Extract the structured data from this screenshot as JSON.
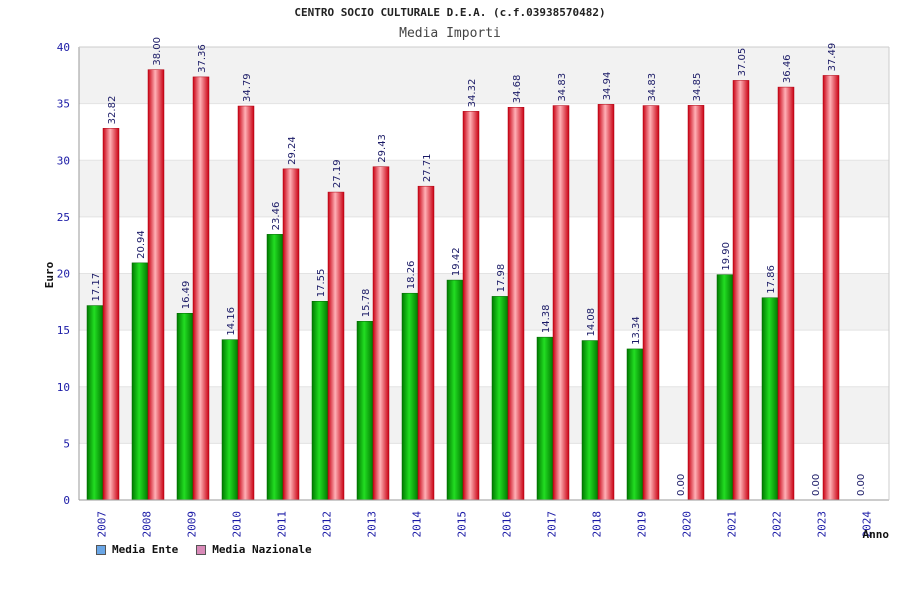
{
  "chart_data": {
    "type": "bar",
    "title": "CENTRO SOCIO CULTURALE D.E.A. (c.f.03938570482)",
    "subtitle": "Media Importi",
    "xlabel": "Anno",
    "ylabel": "Euro",
    "ylim": [
      0,
      40
    ],
    "yticks": [
      0,
      5,
      10,
      15,
      20,
      25,
      30,
      35,
      40
    ],
    "grid": true,
    "legend_position": "bottom-left",
    "categories": [
      "2007",
      "2008",
      "2009",
      "2010",
      "2011",
      "2012",
      "2013",
      "2014",
      "2015",
      "2016",
      "2017",
      "2018",
      "2019",
      "2020",
      "2021",
      "2022",
      "2023",
      "2024"
    ],
    "series": [
      {
        "name": "Media Ente",
        "color": "#00aa00",
        "legend_color": "#6aa6e6",
        "values": [
          17.17,
          20.94,
          16.49,
          14.16,
          23.46,
          17.55,
          15.78,
          18.26,
          19.42,
          17.98,
          14.38,
          14.08,
          13.34,
          0.0,
          19.9,
          17.86,
          0.0,
          0.0
        ],
        "labels": [
          "17.17",
          "20.94",
          "16.49",
          "14.16",
          "23.46",
          "17.55",
          "15.78",
          "18.26",
          "19.42",
          "17.98",
          "14.38",
          "14.08",
          "13.34",
          "0.00",
          "19.90",
          "17.86",
          "0.00",
          "0.00"
        ]
      },
      {
        "name": "Media Nazionale",
        "color": "#ee1c2a",
        "legend_color": "#d98ab8",
        "values": [
          32.82,
          38.0,
          37.36,
          34.79,
          29.24,
          27.19,
          29.43,
          27.71,
          34.32,
          34.68,
          34.83,
          34.94,
          34.83,
          34.85,
          37.05,
          36.46,
          37.49,
          null
        ],
        "labels": [
          "32.82",
          "38.00",
          "37.36",
          "34.79",
          "29.24",
          "27.19",
          "29.43",
          "27.71",
          "34.32",
          "34.68",
          "34.83",
          "34.94",
          "34.83",
          "34.85",
          "37.05",
          "36.46",
          "37.49",
          ""
        ]
      }
    ]
  }
}
